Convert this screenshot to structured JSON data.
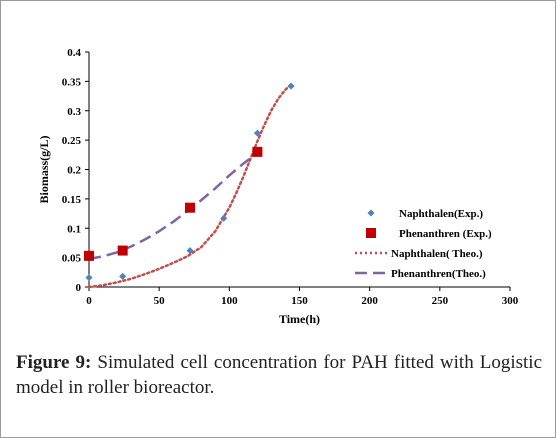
{
  "caption": {
    "label": "Figure 9:",
    "text": " Simulated cell concentration for PAH fitted with Logistic model in roller bioreactor."
  },
  "chart_data": {
    "type": "scatter",
    "xlabel": "Time(h)",
    "ylabel": "Biomass(g/L)",
    "xlim": [
      0,
      300
    ],
    "ylim": [
      0,
      0.4
    ],
    "x_ticks": [
      "0",
      "50",
      "100",
      "150",
      "200",
      "250",
      "300"
    ],
    "y_ticks": [
      "0",
      "0.05",
      "0.1",
      "0.15",
      "0.2",
      "0.25",
      "0.3",
      "0.35",
      "0.4"
    ],
    "grid": false,
    "legend_position": "right",
    "series": [
      {
        "name": "Naphthalen(Exp.)",
        "kind": "markers",
        "marker": "diamond",
        "color": "#4f81bd",
        "x": [
          0,
          24,
          72,
          96,
          120,
          144
        ],
        "y": [
          0.016,
          0.018,
          0.062,
          0.117,
          0.262,
          0.342
        ]
      },
      {
        "name": "Phenanthren (Exp.)",
        "kind": "markers",
        "marker": "square",
        "color": "#c00000",
        "x": [
          0,
          24,
          72,
          120
        ],
        "y": [
          0.053,
          0.062,
          0.135,
          0.23
        ]
      },
      {
        "name": "Naphthalen( Theo.)",
        "kind": "line",
        "dash": "dotted",
        "color": "#c0504d",
        "x": [
          0,
          10,
          20,
          30,
          40,
          50,
          60,
          70,
          80,
          90,
          100,
          105,
          110,
          115,
          120,
          125,
          130,
          135,
          140,
          144
        ],
        "y": [
          0.0,
          0.003,
          0.008,
          0.014,
          0.022,
          0.031,
          0.041,
          0.052,
          0.068,
          0.095,
          0.135,
          0.16,
          0.188,
          0.218,
          0.248,
          0.276,
          0.301,
          0.321,
          0.336,
          0.345
        ]
      },
      {
        "name": "Phenanthren(Theo.)",
        "kind": "line",
        "dash": "dashed",
        "color": "#8064a2",
        "x": [
          0,
          10,
          20,
          30,
          40,
          50,
          60,
          70,
          80,
          90,
          100,
          110,
          120
        ],
        "y": [
          0.048,
          0.052,
          0.059,
          0.069,
          0.081,
          0.095,
          0.111,
          0.129,
          0.148,
          0.168,
          0.19,
          0.21,
          0.228
        ]
      }
    ]
  }
}
